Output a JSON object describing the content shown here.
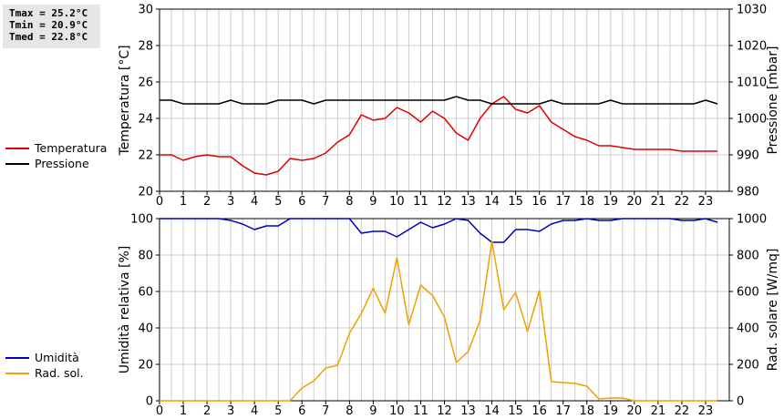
{
  "stats": [
    "Tmax = 25.2°C",
    "Tmin = 20.9°C",
    "Tmed = 22.8°C"
  ],
  "colors": {
    "temperatura": "#dd0000",
    "pressione": "#000000",
    "umidita": "#0000bb",
    "rad_sol": "#f0a000",
    "grid": "#cccccc"
  },
  "legend_top": [
    {
      "label": "Temperatura",
      "color": "#dd0000"
    },
    {
      "label": "Pressione",
      "color": "#000000"
    }
  ],
  "legend_bottom": [
    {
      "label": "Umidità",
      "color": "#0000bb"
    },
    {
      "label": "Rad. sol.",
      "color": "#f0a000"
    }
  ],
  "chart_data": [
    {
      "type": "line",
      "ylabel": "Temperatura [°C]",
      "y2label": "Pressione [mbar]",
      "xlim": [
        0,
        24
      ],
      "ylim": [
        20,
        30
      ],
      "y2lim": [
        980,
        1030
      ],
      "xticks": [
        0,
        1,
        2,
        3,
        4,
        5,
        6,
        7,
        8,
        9,
        10,
        11,
        12,
        13,
        14,
        15,
        16,
        17,
        18,
        19,
        20,
        21,
        22,
        23
      ],
      "yticks": [
        20,
        22,
        24,
        26,
        28,
        30
      ],
      "y2ticks": [
        980,
        990,
        1000,
        1010,
        1020,
        1030
      ],
      "grid": true,
      "x": [
        0,
        0.5,
        1,
        1.5,
        2,
        2.5,
        3,
        3.5,
        4,
        4.5,
        5,
        5.5,
        6,
        6.5,
        7,
        7.5,
        8,
        8.5,
        9,
        9.5,
        10,
        10.5,
        11,
        11.5,
        12,
        12.5,
        13,
        13.5,
        14,
        14.5,
        15,
        15.5,
        16,
        16.5,
        17,
        17.5,
        18,
        18.5,
        19,
        19.5,
        20,
        20.5,
        21,
        21.5,
        22,
        22.5,
        23,
        23.5
      ],
      "series": [
        {
          "name": "Temperatura",
          "axis": "left",
          "values": [
            22,
            22,
            21.7,
            21.9,
            22,
            21.9,
            21.9,
            21.4,
            21,
            20.9,
            21.1,
            21.8,
            21.7,
            21.8,
            22.1,
            22.7,
            23.1,
            24.2,
            23.9,
            24,
            24.6,
            24.3,
            23.8,
            24.4,
            24,
            23.2,
            22.8,
            24,
            24.8,
            25.2,
            24.5,
            24.3,
            24.7,
            23.8,
            23.4,
            23,
            22.8,
            22.5,
            22.5,
            22.4,
            22.3,
            22.3,
            22.3,
            22.3,
            22.2,
            22.2,
            22.2,
            22.2
          ]
        },
        {
          "name": "Pressione",
          "axis": "right",
          "values": [
            1005,
            1005,
            1004,
            1004,
            1004,
            1004,
            1005,
            1004,
            1004,
            1004,
            1005,
            1005,
            1005,
            1004,
            1005,
            1005,
            1005,
            1005,
            1005,
            1005,
            1005,
            1005,
            1005,
            1005,
            1005,
            1006,
            1005,
            1005,
            1004,
            1004,
            1004,
            1004,
            1004,
            1005,
            1004,
            1004,
            1004,
            1004,
            1005,
            1004,
            1004,
            1004,
            1004,
            1004,
            1004,
            1004,
            1005,
            1004
          ]
        }
      ]
    },
    {
      "type": "line",
      "ylabel": "Umidità relativa [%]",
      "y2label": "Rad. solare [W/mq]",
      "xlim": [
        0,
        24
      ],
      "ylim": [
        0,
        100
      ],
      "y2lim": [
        0,
        1000
      ],
      "xticks": [
        0,
        1,
        2,
        3,
        4,
        5,
        6,
        7,
        8,
        9,
        10,
        11,
        12,
        13,
        14,
        15,
        16,
        17,
        18,
        19,
        20,
        21,
        22,
        23
      ],
      "yticks": [
        0,
        20,
        40,
        60,
        80,
        100
      ],
      "y2ticks": [
        0,
        200,
        400,
        600,
        800,
        1000
      ],
      "grid": true,
      "x": [
        0,
        0.5,
        1,
        1.5,
        2,
        2.5,
        3,
        3.5,
        4,
        4.5,
        5,
        5.5,
        6,
        6.5,
        7,
        7.5,
        8,
        8.5,
        9,
        9.5,
        10,
        10.5,
        11,
        11.5,
        12,
        12.5,
        13,
        13.5,
        14,
        14.5,
        15,
        15.5,
        16,
        16.5,
        17,
        17.5,
        18,
        18.5,
        19,
        19.5,
        20,
        20.5,
        21,
        21.5,
        22,
        22.5,
        23,
        23.5
      ],
      "series": [
        {
          "name": "Umidità",
          "axis": "left",
          "values": [
            100,
            100,
            100,
            100,
            100,
            100,
            99,
            97,
            94,
            96,
            96,
            100,
            100,
            100,
            100,
            100,
            100,
            92,
            93,
            93,
            90,
            94,
            98,
            95,
            97,
            100,
            99,
            92,
            87,
            87,
            94,
            94,
            93,
            97,
            99,
            99,
            100,
            99,
            99,
            100,
            100,
            100,
            100,
            100,
            99,
            99,
            100,
            98
          ]
        },
        {
          "name": "Rad. sol.",
          "axis": "right",
          "values": [
            0,
            0,
            0,
            0,
            0,
            0,
            0,
            0,
            0,
            0,
            0,
            0,
            70,
            110,
            180,
            195,
            370,
            480,
            618,
            480,
            785,
            418,
            635,
            578,
            460,
            210,
            270,
            440,
            875,
            500,
            595,
            380,
            605,
            105,
            100,
            95,
            80,
            10,
            15,
            15,
            0,
            0,
            0,
            0,
            0,
            0,
            0,
            0
          ]
        }
      ]
    }
  ]
}
